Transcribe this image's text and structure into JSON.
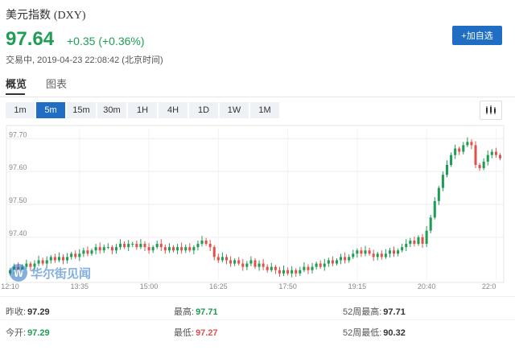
{
  "header": {
    "title": "美元指数",
    "code": "(DXY)",
    "price": "97.64",
    "change": "+0.35 (+0.36%)",
    "status": "交易中, 2019-04-23 22:08:42 (北京时间)",
    "add_button": "+加自选"
  },
  "tabs": [
    {
      "label": "概览",
      "active": true
    },
    {
      "label": "图表",
      "active": false
    }
  ],
  "periods": [
    {
      "label": "1m",
      "active": false
    },
    {
      "label": "5m",
      "active": true
    },
    {
      "label": "15m",
      "active": false
    },
    {
      "label": "30m",
      "active": false
    },
    {
      "label": "1H",
      "active": false
    },
    {
      "label": "4H",
      "active": false
    },
    {
      "label": "1D",
      "active": false
    },
    {
      "label": "1W",
      "active": false
    },
    {
      "label": "1M",
      "active": false
    }
  ],
  "chart_type_icon": "candlestick-icon",
  "watermark": "华尔街见闻",
  "chart_data": {
    "type": "candlestick",
    "up_color": "#1f9d55",
    "down_color": "#e0534d",
    "y_ticks": [
      "97.70",
      "97.60",
      "97.50",
      "97.40"
    ],
    "y_tick_values": [
      97.7,
      97.6,
      97.5,
      97.4
    ],
    "ylim": [
      97.27,
      97.73
    ],
    "x_ticks": [
      "12:10",
      "13:35",
      "15:00",
      "16:25",
      "17:50",
      "19:15",
      "20:40",
      "22:0"
    ],
    "x_tick_index": [
      0,
      17,
      34,
      51,
      68,
      85,
      102,
      119
    ],
    "closes": [
      97.3,
      97.31,
      97.3,
      97.31,
      97.32,
      97.31,
      97.32,
      97.33,
      97.32,
      97.33,
      97.34,
      97.33,
      97.34,
      97.33,
      97.34,
      97.35,
      97.34,
      97.35,
      97.36,
      97.35,
      97.36,
      97.37,
      97.36,
      97.37,
      97.37,
      97.36,
      97.37,
      97.38,
      97.37,
      97.38,
      97.38,
      97.37,
      97.38,
      97.37,
      97.36,
      97.37,
      97.38,
      97.37,
      97.36,
      97.37,
      97.36,
      97.37,
      97.36,
      97.37,
      97.36,
      97.37,
      97.38,
      97.39,
      97.38,
      97.37,
      97.34,
      97.33,
      97.34,
      97.33,
      97.32,
      97.33,
      97.32,
      97.31,
      97.32,
      97.33,
      97.31,
      97.32,
      97.31,
      97.3,
      97.31,
      97.3,
      97.29,
      97.3,
      97.29,
      97.3,
      97.29,
      97.3,
      97.31,
      97.3,
      97.31,
      97.32,
      97.31,
      97.32,
      97.33,
      97.32,
      97.33,
      97.34,
      97.33,
      97.34,
      97.35,
      97.36,
      97.35,
      97.36,
      97.35,
      97.34,
      97.35,
      97.34,
      97.35,
      97.36,
      97.35,
      97.36,
      97.37,
      97.38,
      97.39,
      97.38,
      97.4,
      97.38,
      97.42,
      97.46,
      97.51,
      97.55,
      97.59,
      97.62,
      97.65,
      97.67,
      97.66,
      97.68,
      97.69,
      97.68,
      97.62,
      97.61,
      97.63,
      97.65,
      97.66,
      97.65,
      97.64
    ],
    "summary": {
      "prev_close_label": "昨收:",
      "prev_close": "97.29",
      "open_label": "今开:",
      "open": "97.29",
      "high_label": "最高:",
      "high": "97.71",
      "low_label": "最低:",
      "low": "97.27",
      "high52_label": "52周最高:",
      "high52": "97.71",
      "low52_label": "52周最低:",
      "low52": "90.32"
    }
  }
}
